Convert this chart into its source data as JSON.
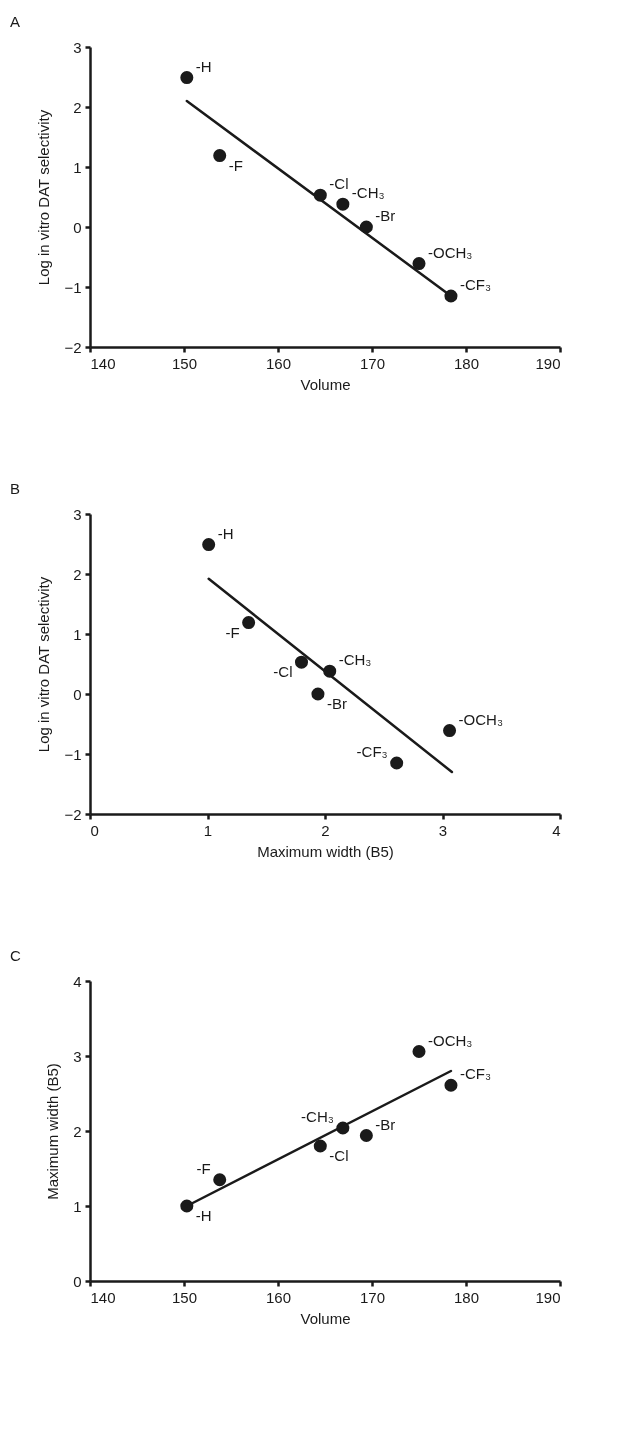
{
  "chart_data": [
    {
      "type": "scatter",
      "title": "A",
      "xlabel": "Volume",
      "ylabel": "Log in vitro DAT selectivity",
      "xlim": [
        140,
        190
      ],
      "xticks": [
        140,
        150,
        160,
        170,
        180,
        190
      ],
      "ylim": [
        -2,
        3
      ],
      "yticks": [
        -2,
        -1,
        0,
        1,
        2,
        3
      ],
      "grid": false,
      "marker": "circle",
      "series": [
        {
          "color": "#1a1a1a",
          "x": [
            150.3,
            153.8,
            164.5,
            166.9,
            169.4,
            175.0,
            178.4
          ],
          "values": [
            2.49,
            1.19,
            0.53,
            0.38,
            0.0,
            -0.61,
            -1.15
          ]
        },
        {
          "type": "line",
          "marker": "none",
          "color": "#1a1a1a",
          "x": [
            150.3,
            178.4
          ],
          "values": [
            2.1,
            -1.15
          ]
        }
      ],
      "annotations": [
        {
          "text": "-H",
          "x": 150.3,
          "y": 2.49
        },
        {
          "text": "-F",
          "x": 153.8,
          "y": 1.19
        },
        {
          "text": "-Cl",
          "x": 164.5,
          "y": 0.53
        },
        {
          "text": "-CH₃",
          "x": 166.9,
          "y": 0.38
        },
        {
          "text": "-Br",
          "x": 169.4,
          "y": 0.0
        },
        {
          "text": "-OCH₃",
          "x": 175.0,
          "y": -0.61
        },
        {
          "text": "-CF₃",
          "x": 178.4,
          "y": -1.15
        }
      ]
    },
    {
      "type": "scatter",
      "title": "B",
      "xlabel": "Maximum width (B5)",
      "ylabel": "Log in vitro DAT selectivity",
      "xlim": [
        0,
        4
      ],
      "xticks": [
        0,
        1,
        2,
        3,
        4
      ],
      "ylim": [
        -2,
        3
      ],
      "yticks": [
        -2,
        -1,
        0,
        1,
        2,
        3
      ],
      "grid": false,
      "marker": "circle",
      "series": [
        {
          "color": "#1a1a1a",
          "x": [
            1.01,
            1.35,
            1.8,
            2.04,
            1.94,
            3.06,
            2.61
          ],
          "values": [
            2.49,
            1.19,
            0.53,
            0.38,
            0.0,
            -0.61,
            -1.15
          ]
        },
        {
          "type": "line",
          "marker": "none",
          "color": "#1a1a1a",
          "x": [
            1.01,
            3.08
          ],
          "values": [
            1.92,
            -1.3
          ]
        }
      ],
      "annotations": [
        {
          "text": "-H",
          "x": 1.01,
          "y": 2.49
        },
        {
          "text": "-F",
          "x": 1.35,
          "y": 1.19
        },
        {
          "text": "-Cl",
          "x": 1.8,
          "y": 0.53
        },
        {
          "text": "-CH₃",
          "x": 2.04,
          "y": 0.38
        },
        {
          "text": "-Br",
          "x": 1.94,
          "y": 0.0
        },
        {
          "text": "-OCH₃",
          "x": 3.06,
          "y": -0.61
        },
        {
          "text": "-CF₃",
          "x": 2.61,
          "y": -1.15
        }
      ]
    },
    {
      "type": "scatter",
      "title": "C",
      "xlabel": "Volume",
      "ylabel": "Maximum width (B5)",
      "xlim": [
        140,
        190
      ],
      "xticks": [
        140,
        150,
        160,
        170,
        180,
        190
      ],
      "ylim": [
        0,
        4
      ],
      "yticks": [
        0,
        1,
        2,
        3,
        4
      ],
      "grid": false,
      "marker": "circle",
      "series": [
        {
          "color": "#1a1a1a",
          "x": [
            150.3,
            153.8,
            164.5,
            166.9,
            169.4,
            175.0,
            178.4
          ],
          "values": [
            1.0,
            1.35,
            1.8,
            2.04,
            1.94,
            3.06,
            2.61
          ]
        },
        {
          "type": "line",
          "marker": "none",
          "color": "#1a1a1a",
          "x": [
            150.3,
            178.4
          ],
          "values": [
            1.0,
            2.8
          ]
        }
      ],
      "annotations": [
        {
          "text": "-H",
          "x": 150.3,
          "y": 1.0
        },
        {
          "text": "-F",
          "x": 153.8,
          "y": 1.35
        },
        {
          "text": "-Cl",
          "x": 164.5,
          "y": 1.8
        },
        {
          "text": "-CH₃",
          "x": 166.9,
          "y": 2.04
        },
        {
          "text": "-Br",
          "x": 169.4,
          "y": 1.94
        },
        {
          "text": "-OCH₃",
          "x": 175.0,
          "y": 3.06
        },
        {
          "text": "-CF₃",
          "x": 178.4,
          "y": 2.61
        }
      ]
    }
  ]
}
